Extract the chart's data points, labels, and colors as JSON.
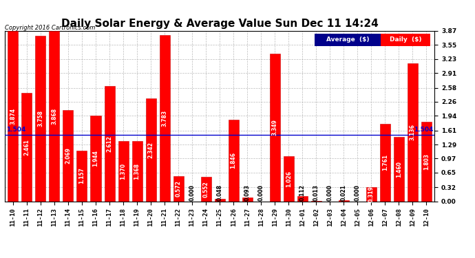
{
  "title": "Daily Solar Energy & Average Value Sun Dec 11 14:24",
  "copyright": "Copyright 2016 Cartronics.com",
  "categories": [
    "11-10",
    "11-11",
    "11-12",
    "11-13",
    "11-14",
    "11-15",
    "11-16",
    "11-17",
    "11-18",
    "11-19",
    "11-20",
    "11-21",
    "11-22",
    "11-23",
    "11-24",
    "11-25",
    "11-26",
    "11-27",
    "11-28",
    "11-29",
    "11-30",
    "12-01",
    "12-02",
    "12-03",
    "12-04",
    "12-05",
    "12-06",
    "12-07",
    "12-08",
    "12-09",
    "12-10"
  ],
  "values": [
    3.874,
    2.461,
    3.758,
    3.868,
    2.069,
    1.157,
    1.944,
    2.612,
    1.37,
    1.368,
    2.342,
    3.783,
    0.572,
    0.0,
    0.552,
    0.048,
    1.846,
    0.093,
    0.0,
    3.349,
    1.026,
    0.112,
    0.013,
    0.0,
    0.021,
    0.0,
    0.319,
    1.761,
    1.46,
    3.136,
    1.803
  ],
  "average_line": 1.504,
  "average_label": "1.504",
  "bar_color": "#ff0000",
  "bar_edge_color": "#cc0000",
  "avg_line_color": "#0000cd",
  "background_color": "#ffffff",
  "plot_bg_color": "#ffffff",
  "grid_color": "#aaaaaa",
  "ylim": [
    0,
    3.87
  ],
  "yticks": [
    0.0,
    0.32,
    0.65,
    0.97,
    1.29,
    1.61,
    1.94,
    2.26,
    2.58,
    2.91,
    3.23,
    3.55,
    3.87
  ],
  "title_fontsize": 11,
  "tick_fontsize": 6.5,
  "value_fontsize": 5.5,
  "legend_avg_color": "#00008b",
  "legend_daily_color": "#ff0000",
  "legend_text_color": "#ffffff"
}
